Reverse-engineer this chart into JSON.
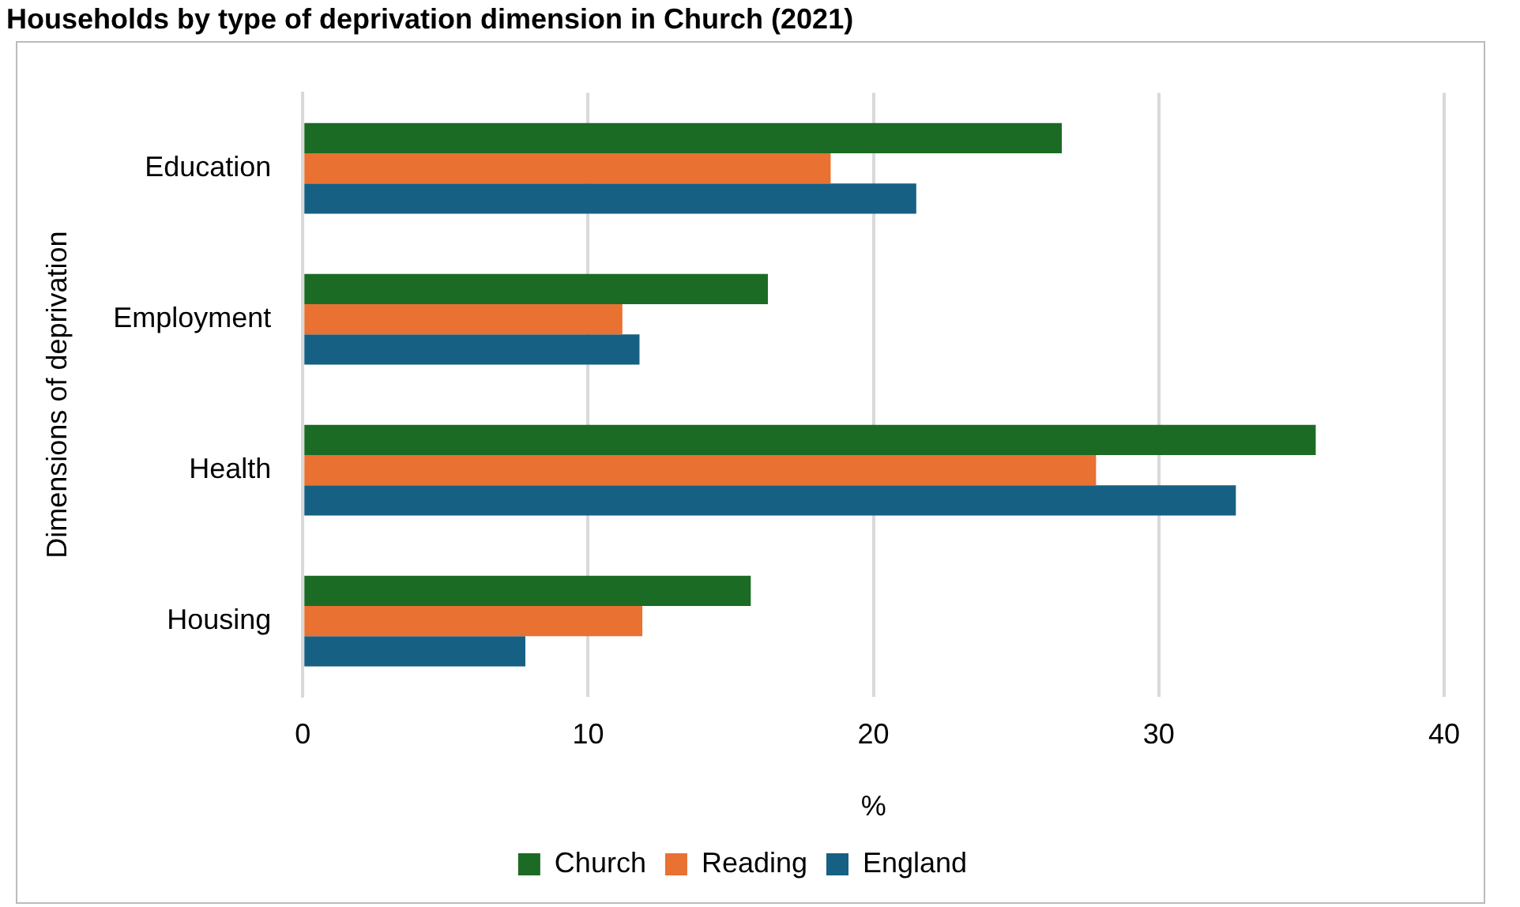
{
  "chart_data": {
    "type": "bar",
    "orientation": "horizontal",
    "title": "Households by type of deprivation dimension in Church (2021)",
    "xlabel": "%",
    "ylabel": "Dimensions of deprivation",
    "categories": [
      "Education",
      "Employment",
      "Health",
      "Housing"
    ],
    "series": [
      {
        "name": "Church",
        "color": "#1b6b24",
        "values": [
          26.6,
          16.3,
          35.5,
          15.7
        ]
      },
      {
        "name": "Reading",
        "color": "#e97132",
        "values": [
          18.5,
          11.2,
          27.8,
          11.9
        ]
      },
      {
        "name": "England",
        "color": "#166083",
        "values": [
          21.5,
          11.8,
          32.7,
          7.8
        ]
      }
    ],
    "xlim": [
      0,
      40
    ],
    "xticks": [
      0,
      10,
      20,
      30,
      40
    ],
    "grid": "x",
    "legend": "bottom"
  }
}
